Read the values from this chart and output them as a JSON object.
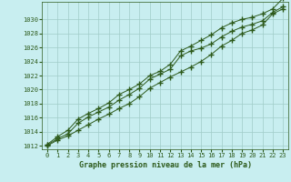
{
  "xlabel": "Graphe pression niveau de la mer (hPa)",
  "xlim": [
    -0.5,
    23.5
  ],
  "ylim": [
    1011.5,
    1032.5
  ],
  "yticks": [
    1012,
    1014,
    1016,
    1018,
    1020,
    1022,
    1024,
    1026,
    1028,
    1030
  ],
  "xticks": [
    0,
    1,
    2,
    3,
    4,
    5,
    6,
    7,
    8,
    9,
    10,
    11,
    12,
    13,
    14,
    15,
    16,
    17,
    18,
    19,
    20,
    21,
    22,
    23
  ],
  "bg_color": "#c8eef0",
  "grid_color": "#a0ccc8",
  "line_color": "#2d5a1b",
  "series1": [
    1012.0,
    1012.8,
    1013.4,
    1014.2,
    1015.0,
    1015.8,
    1016.5,
    1017.3,
    1018.0,
    1019.0,
    1020.2,
    1021.0,
    1021.8,
    1022.5,
    1023.2,
    1024.0,
    1025.0,
    1026.2,
    1027.0,
    1028.0,
    1028.5,
    1029.2,
    1030.8,
    1031.5
  ],
  "series2": [
    1012.1,
    1013.0,
    1013.7,
    1015.2,
    1016.1,
    1016.8,
    1017.5,
    1018.5,
    1019.3,
    1020.2,
    1021.5,
    1022.2,
    1022.9,
    1024.8,
    1025.5,
    1025.9,
    1026.5,
    1027.5,
    1028.3,
    1028.9,
    1029.3,
    1029.8,
    1031.0,
    1031.8
  ],
  "series3": [
    1012.2,
    1013.3,
    1014.2,
    1015.8,
    1016.6,
    1017.3,
    1018.1,
    1019.3,
    1020.0,
    1020.8,
    1022.0,
    1022.6,
    1023.6,
    1025.5,
    1026.2,
    1027.0,
    1027.8,
    1028.8,
    1029.5,
    1030.0,
    1030.3,
    1030.8,
    1031.5,
    1033.0
  ],
  "marker": "+",
  "markersize": 4,
  "markeredgewidth": 1.0,
  "linewidth": 0.7,
  "tick_fontsize": 5.0,
  "label_fontsize": 6.0
}
